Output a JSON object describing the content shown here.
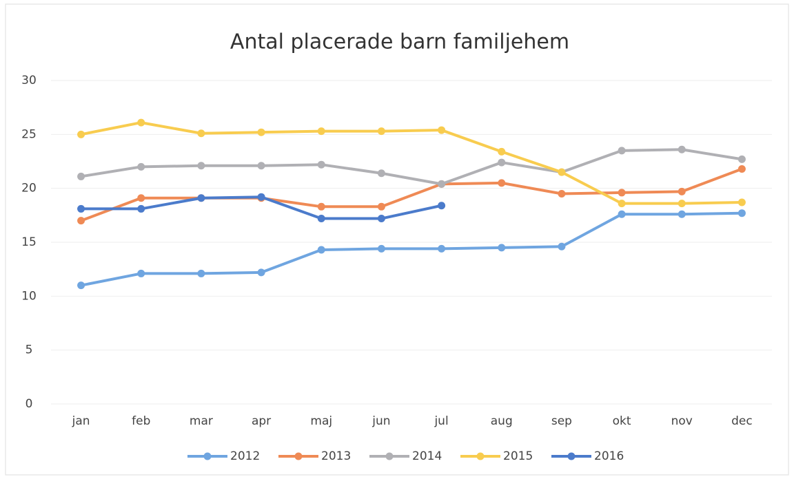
{
  "chart_data": {
    "type": "line",
    "title": "Antal placerade barn familjehem",
    "categories": [
      "jan",
      "feb",
      "mar",
      "apr",
      "maj",
      "jun",
      "jul",
      "aug",
      "sep",
      "okt",
      "nov",
      "dec"
    ],
    "series": [
      {
        "name": "2012",
        "color": "#6fa5e0",
        "values": [
          11.0,
          12.1,
          12.1,
          12.2,
          14.3,
          14.4,
          14.4,
          14.5,
          14.6,
          17.6,
          17.6,
          17.7
        ]
      },
      {
        "name": "2013",
        "color": "#ef8a55",
        "values": [
          17.0,
          19.1,
          19.1,
          19.1,
          18.3,
          18.3,
          20.4,
          20.5,
          19.5,
          19.6,
          19.7,
          21.8
        ]
      },
      {
        "name": "2014",
        "color": "#b0b0b4",
        "values": [
          21.1,
          22.0,
          22.1,
          22.1,
          22.2,
          21.4,
          20.4,
          22.4,
          21.5,
          23.5,
          23.6,
          22.7
        ]
      },
      {
        "name": "2015",
        "color": "#f8cc4f",
        "values": [
          25.0,
          26.1,
          25.1,
          25.2,
          25.3,
          25.3,
          25.4,
          23.4,
          21.5,
          18.6,
          18.6,
          18.7
        ]
      },
      {
        "name": "2016",
        "color": "#4b7bcb",
        "values": [
          18.1,
          18.1,
          19.1,
          19.2,
          17.2,
          17.2,
          18.4,
          null,
          null,
          null,
          null,
          null
        ]
      }
    ],
    "ylim": [
      0,
      30
    ],
    "yticks": [
      0,
      5,
      10,
      15,
      20,
      25,
      30
    ],
    "grid": true,
    "legend": "bottom"
  }
}
